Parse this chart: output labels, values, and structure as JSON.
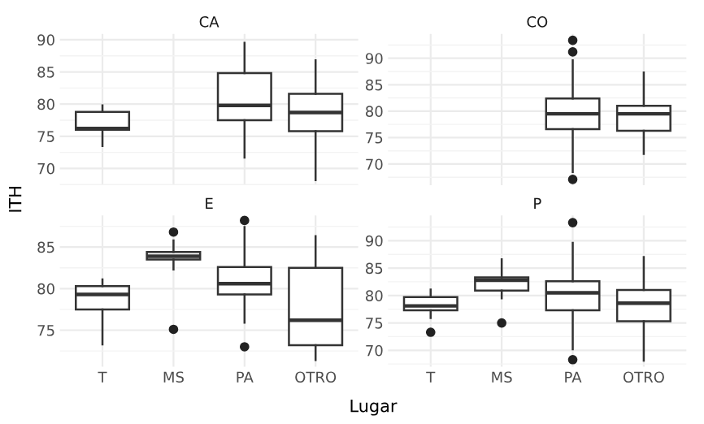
{
  "chart_data": [
    {
      "type": "box",
      "title": "CA",
      "xlabel": "Lugar",
      "ylabel": "ITH",
      "categories": [
        null,
        null,
        null,
        null
      ],
      "ylim": [
        67.4,
        90.9
      ],
      "yticks": [
        70,
        75,
        80,
        85,
        90
      ],
      "grid": true,
      "tick_labels": "y",
      "color": "#333333",
      "boxes": [
        {
          "low": 73.5,
          "q1": 76.0,
          "median": 76.2,
          "q3": 78.8,
          "high": 79.8
        },
        null,
        {
          "low": 71.7,
          "q1": 77.5,
          "median": 79.8,
          "q3": 84.8,
          "high": 89.5
        },
        {
          "low": 68.2,
          "q1": 75.8,
          "median": 78.7,
          "q3": 81.6,
          "high": 86.8
        }
      ]
    },
    {
      "type": "box",
      "title": "CO",
      "categories": [
        null,
        null,
        null,
        null
      ],
      "ylim": [
        66.0,
        94.6
      ],
      "yticks": [
        70,
        75,
        80,
        85,
        90
      ],
      "grid": true,
      "tick_labels": "y",
      "color": "#333333",
      "boxes": [
        null,
        null,
        {
          "low": 68.5,
          "q1": 76.6,
          "median": 79.5,
          "q3": 82.4,
          "high": 89.6,
          "outliers": [
            93.4,
            91.2,
            67.1
          ]
        },
        {
          "low": 71.9,
          "q1": 76.3,
          "median": 79.5,
          "q3": 81.0,
          "high": 87.3
        }
      ]
    },
    {
      "type": "box",
      "title": "E",
      "categories": [
        "T",
        "MS",
        "PA",
        "OTRO"
      ],
      "ylim": [
        70.6,
        88.8
      ],
      "yticks": [
        75,
        80,
        85
      ],
      "grid": true,
      "color": "#333333",
      "boxes": [
        {
          "low": 73.3,
          "q1": 77.5,
          "median": 79.3,
          "q3": 80.3,
          "high": 81.1
        },
        {
          "low": 82.3,
          "q1": 83.5,
          "median": 83.9,
          "q3": 84.4,
          "high": 85.8,
          "outliers": [
            86.8,
            75.1
          ]
        },
        {
          "low": 75.9,
          "q1": 79.3,
          "median": 80.6,
          "q3": 82.6,
          "high": 87.4,
          "outliers": [
            88.2,
            73.0
          ]
        },
        {
          "low": 71.4,
          "q1": 73.2,
          "median": 76.2,
          "q3": 82.5,
          "high": 86.3
        }
      ]
    },
    {
      "type": "box",
      "title": "P",
      "categories": [
        "T",
        "MS",
        "PA",
        "OTRO"
      ],
      "ylim": [
        67.0,
        94.6
      ],
      "yticks": [
        70,
        75,
        80,
        85,
        90
      ],
      "grid": true,
      "color": "#333333",
      "boxes": [
        {
          "low": 75.9,
          "q1": 77.3,
          "median": 78.1,
          "q3": 79.7,
          "high": 81.1,
          "outliers": [
            73.3
          ]
        },
        {
          "low": 79.5,
          "q1": 80.9,
          "median": 82.8,
          "q3": 83.3,
          "high": 86.6,
          "outliers": [
            75.0
          ]
        },
        {
          "low": 70.2,
          "q1": 77.3,
          "median": 80.5,
          "q3": 82.6,
          "high": 89.6,
          "outliers": [
            93.3,
            68.3
          ]
        },
        {
          "low": 68.1,
          "q1": 75.3,
          "median": 78.6,
          "q3": 81.0,
          "high": 87.0
        }
      ]
    }
  ]
}
